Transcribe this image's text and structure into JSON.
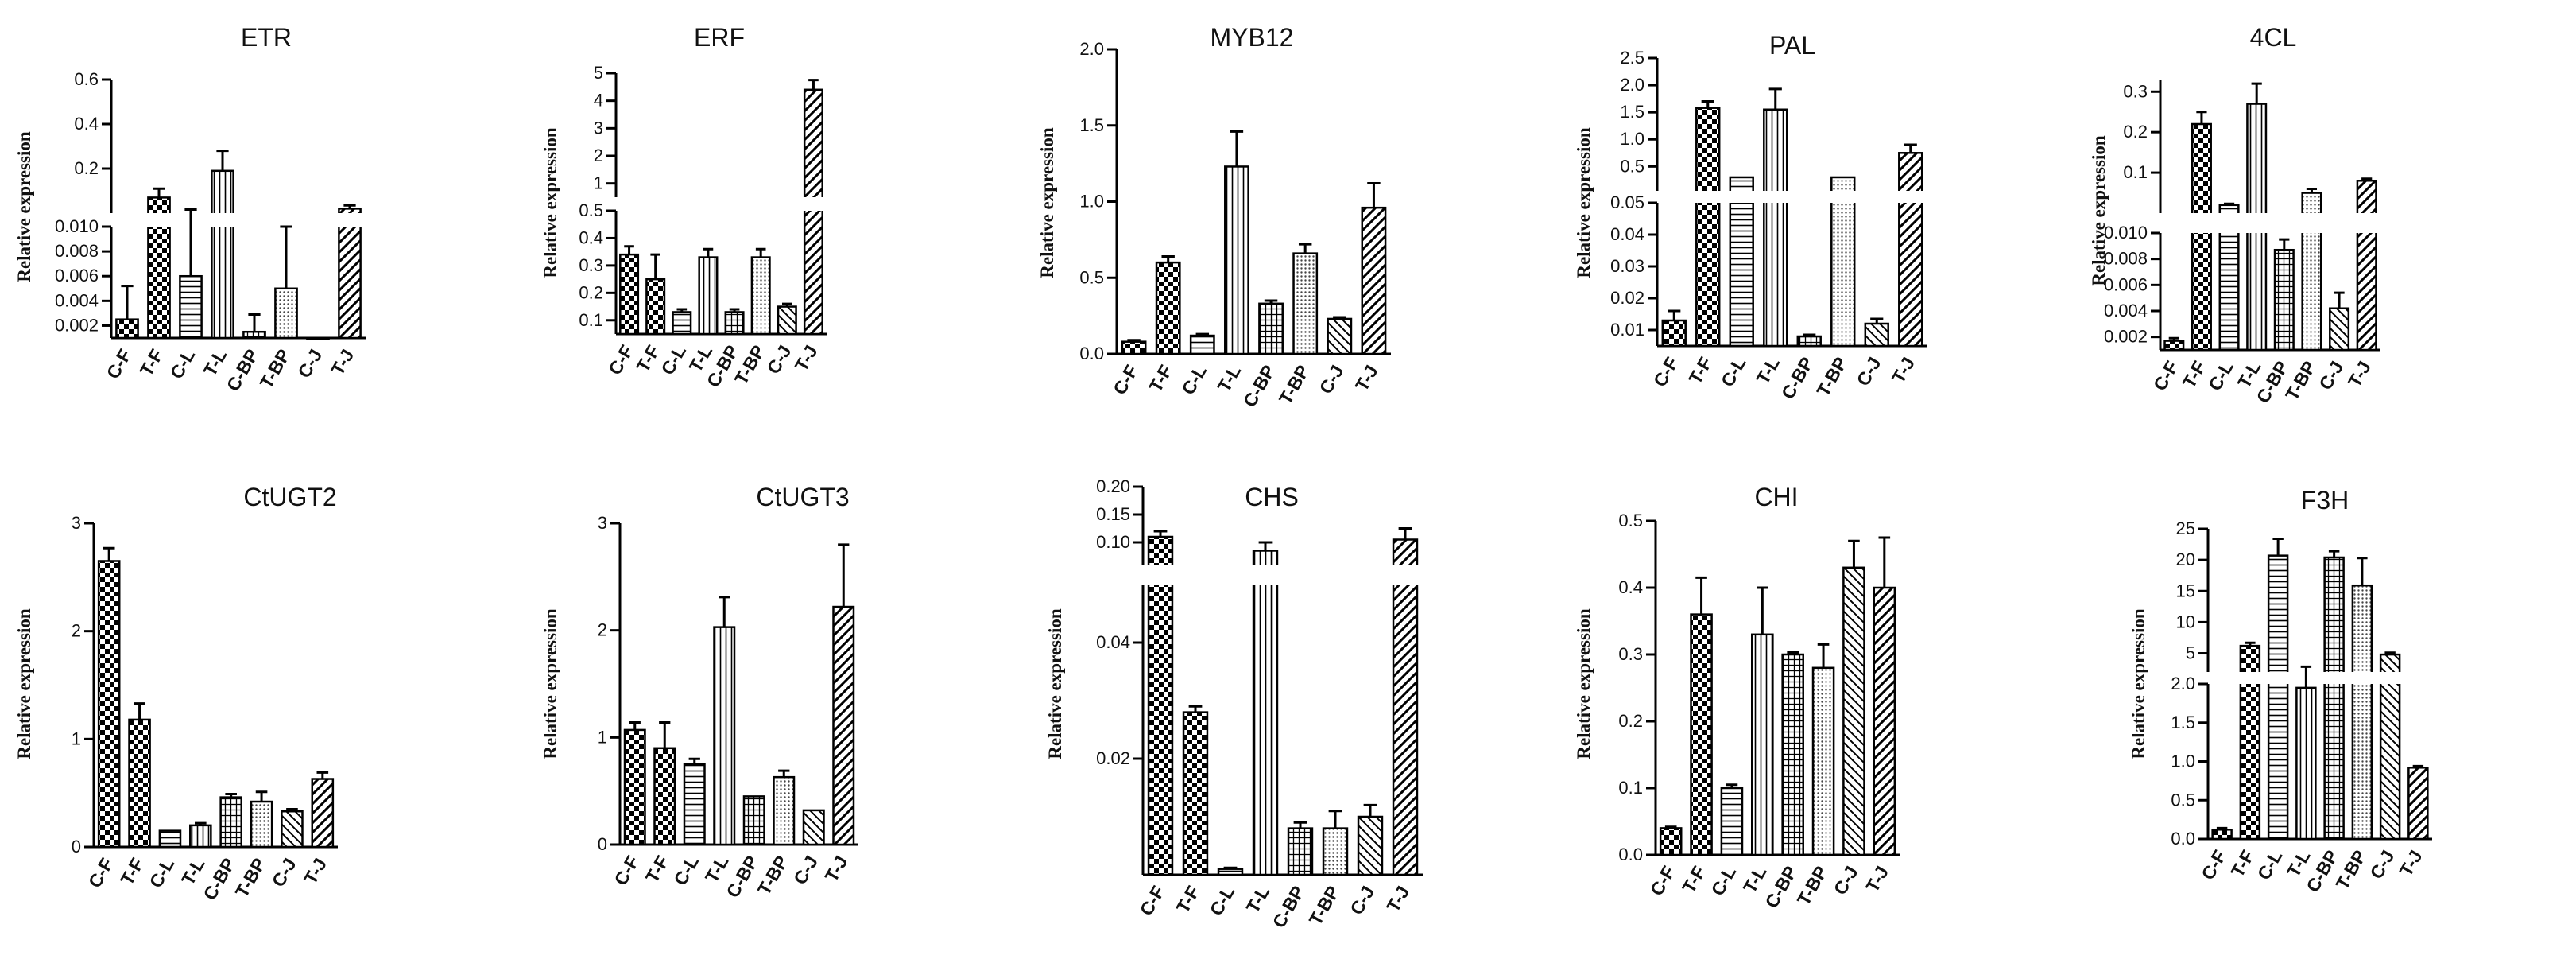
{
  "chart_data": [
    {
      "type": "bar",
      "title": "ETR",
      "ylabel": "Relative expression",
      "categories": [
        "C-F",
        "T-F",
        "C-L",
        "T-L",
        "C-BP",
        "T-BP",
        "C-J",
        "T-J"
      ],
      "values": [
        0.0025,
        0.07,
        0.006,
        0.19,
        0.0015,
        0.005,
        0.0003,
        0.02
      ],
      "errors": [
        0.0027,
        0.04,
        0.01,
        0.09,
        0.0014,
        0.005,
        0.0002,
        0.015
      ],
      "segments": [
        {
          "range": [
            0.001,
            0.01
          ],
          "ticks": [
            0.002,
            0.004,
            0.006,
            0.008,
            0.01
          ],
          "labels": [
            "0.002",
            "0.004",
            "0.006",
            "0.008",
            "0.010"
          ]
        },
        {
          "range": [
            0.0,
            0.6
          ],
          "ticks": [
            0.2,
            0.4,
            0.6
          ],
          "labels": [
            "0.2",
            "0.4",
            "0.6"
          ]
        }
      ]
    },
    {
      "type": "bar",
      "title": "ERF",
      "ylabel": "Relative expression",
      "categories": [
        "C-F",
        "T-F",
        "C-L",
        "T-L",
        "C-BP",
        "T-BP",
        "C-J",
        "T-J"
      ],
      "values": [
        0.34,
        0.25,
        0.13,
        0.33,
        0.13,
        0.33,
        0.15,
        4.4
      ],
      "errors": [
        0.03,
        0.09,
        0.01,
        0.03,
        0.01,
        0.03,
        0.01,
        0.35
      ],
      "segments": [
        {
          "range": [
            0.05,
            0.5
          ],
          "ticks": [
            0.1,
            0.2,
            0.3,
            0.4,
            0.5
          ],
          "labels": [
            "0.1",
            "0.2",
            "0.3",
            "0.4",
            "0.5"
          ]
        },
        {
          "range": [
            0.5,
            5
          ],
          "ticks": [
            1,
            2,
            3,
            4,
            5
          ],
          "labels": [
            "1",
            "2",
            "3",
            "4",
            "5"
          ]
        }
      ]
    },
    {
      "type": "bar",
      "title": "MYB12",
      "ylabel": "Relative expression",
      "categories": [
        "C-F",
        "T-F",
        "C-L",
        "T-L",
        "C-BP",
        "T-BP",
        "C-J",
        "T-J"
      ],
      "values": [
        0.08,
        0.6,
        0.12,
        1.23,
        0.33,
        0.66,
        0.23,
        0.96
      ],
      "errors": [
        0.01,
        0.04,
        0.01,
        0.23,
        0.02,
        0.06,
        0.01,
        0.16
      ],
      "segments": [
        {
          "range": [
            0,
            2
          ],
          "ticks": [
            0,
            0.5,
            1,
            1.5,
            2
          ],
          "labels": [
            "0.0",
            "0.5",
            "1.0",
            "1.5",
            "2.0"
          ]
        }
      ]
    },
    {
      "type": "bar",
      "title": "PAL",
      "ylabel": "Relative expression",
      "categories": [
        "C-F",
        "T-F",
        "C-L",
        "T-L",
        "C-BP",
        "T-BP",
        "C-J",
        "T-J"
      ],
      "values": [
        0.013,
        1.58,
        0.3,
        1.55,
        0.008,
        0.3,
        0.012,
        0.75
      ],
      "errors": [
        0.003,
        0.12,
        0,
        0.38,
        0.0005,
        0,
        0.0015,
        0.15
      ],
      "segments": [
        {
          "range": [
            0.005,
            0.05
          ],
          "ticks": [
            0.01,
            0.02,
            0.03,
            0.04,
            0.05
          ],
          "labels": [
            "0.01",
            "0.02",
            "0.03",
            "0.04",
            "0.05"
          ]
        },
        {
          "range": [
            0.05,
            2.5
          ],
          "ticks": [
            0.5,
            1,
            1.5,
            2,
            2.5
          ],
          "labels": [
            "0.5",
            "1.0",
            "1.5",
            "2.0",
            "2.5"
          ]
        }
      ]
    },
    {
      "type": "bar",
      "title": "4CL",
      "ylabel": "Relative expression",
      "categories": [
        "C-F",
        "T-F",
        "C-L",
        "T-L",
        "C-BP",
        "T-BP",
        "C-J",
        "T-J"
      ],
      "values": [
        0.0017,
        0.22,
        0.02,
        0.27,
        0.0087,
        0.05,
        0.0042,
        0.08
      ],
      "errors": [
        0.0002,
        0.03,
        0.003,
        0.05,
        0.0008,
        0.01,
        0.0012,
        0.005
      ],
      "segments": [
        {
          "range": [
            0.001,
            0.01
          ],
          "ticks": [
            0.002,
            0.004,
            0.006,
            0.008,
            0.01
          ],
          "labels": [
            "0.002",
            "0.004",
            "0.006",
            "0.008",
            "0.010"
          ]
        },
        {
          "range": [
            0.0,
            0.33
          ],
          "ticks": [
            0.1,
            0.2,
            0.3
          ],
          "labels": [
            "0.1",
            "0.2",
            "0.3"
          ]
        }
      ]
    },
    {
      "type": "bar",
      "title": "CtUGT2",
      "ylabel": "Relative expression",
      "categories": [
        "C-F",
        "T-F",
        "C-L",
        "T-L",
        "C-BP",
        "T-BP",
        "C-J",
        "T-J"
      ],
      "values": [
        2.65,
        1.18,
        0.15,
        0.2,
        0.46,
        0.42,
        0.33,
        0.63
      ],
      "errors": [
        0.12,
        0.15,
        0,
        0.02,
        0.03,
        0.09,
        0.02,
        0.06
      ],
      "segments": [
        {
          "range": [
            0,
            3
          ],
          "ticks": [
            0,
            1,
            2,
            3
          ],
          "labels": [
            "0",
            "1",
            "2",
            "3"
          ]
        }
      ]
    },
    {
      "type": "bar",
      "title": "CtUGT3",
      "ylabel": "Relative expression",
      "categories": [
        "C-F",
        "T-F",
        "C-L",
        "T-L",
        "C-BP",
        "T-BP",
        "C-J",
        "T-J"
      ],
      "values": [
        1.07,
        0.9,
        0.75,
        2.03,
        0.45,
        0.63,
        0.32,
        2.22
      ],
      "errors": [
        0.07,
        0.24,
        0.05,
        0.28,
        0,
        0.06,
        0,
        0.58
      ],
      "segments": [
        {
          "range": [
            0,
            3
          ],
          "ticks": [
            0,
            1,
            2,
            3
          ],
          "labels": [
            "0",
            "1",
            "2",
            "3"
          ]
        }
      ]
    },
    {
      "type": "bar",
      "title": "CHS",
      "ylabel": "Relative expression",
      "categories": [
        "C-F",
        "T-F",
        "C-L",
        "T-L",
        "C-BP",
        "T-BP",
        "C-J",
        "T-J"
      ],
      "values": [
        0.11,
        0.028,
        0.001,
        0.085,
        0.008,
        0.008,
        0.01,
        0.105
      ],
      "errors": [
        0.01,
        0.001,
        0.0002,
        0.015,
        0.001,
        0.003,
        0.002,
        0.02
      ],
      "segments": [
        {
          "range": [
            0,
            0.05
          ],
          "ticks": [
            0.02,
            0.04
          ],
          "labels": [
            "0.02",
            "0.04"
          ]
        },
        {
          "range": [
            0.06,
            0.2
          ],
          "ticks": [
            0.1,
            0.15,
            0.2
          ],
          "labels": [
            "0.10",
            "0.15",
            "0.20"
          ]
        }
      ]
    },
    {
      "type": "bar",
      "title": "CHI",
      "ylabel": "Relative expression",
      "categories": [
        "C-F",
        "T-F",
        "C-L",
        "T-L",
        "C-BP",
        "T-BP",
        "C-J",
        "T-J"
      ],
      "values": [
        0.04,
        0.36,
        0.1,
        0.33,
        0.3,
        0.28,
        0.43,
        0.4
      ],
      "errors": [
        0.002,
        0.055,
        0.005,
        0.07,
        0.003,
        0.035,
        0.04,
        0.075
      ],
      "segments": [
        {
          "range": [
            0,
            0.5
          ],
          "ticks": [
            0,
            0.1,
            0.2,
            0.3,
            0.4,
            0.5
          ],
          "labels": [
            "0.0",
            "0.1",
            "0.2",
            "0.3",
            "0.4",
            "0.5"
          ]
        }
      ]
    },
    {
      "type": "bar",
      "title": "F3H",
      "ylabel": "Relative expression",
      "categories": [
        "C-F",
        "T-F",
        "C-L",
        "T-L",
        "C-BP",
        "T-BP",
        "C-J",
        "T-J"
      ],
      "values": [
        0.12,
        6.2,
        20.7,
        1.95,
        20.4,
        15.9,
        4.8,
        0.92
      ],
      "errors": [
        0.02,
        0.5,
        2.7,
        0.9,
        1.0,
        4.4,
        0.3,
        0.02
      ],
      "segments": [
        {
          "range": [
            0,
            2
          ],
          "ticks": [
            0,
            0.5,
            1,
            1.5,
            2
          ],
          "labels": [
            "0.0",
            "0.5",
            "1.0",
            "1.5",
            "2.0"
          ]
        },
        {
          "range": [
            2,
            25
          ],
          "ticks": [
            5,
            10,
            15,
            20,
            25
          ],
          "labels": [
            "5",
            "10",
            "15",
            "20",
            "25"
          ]
        }
      ]
    }
  ]
}
